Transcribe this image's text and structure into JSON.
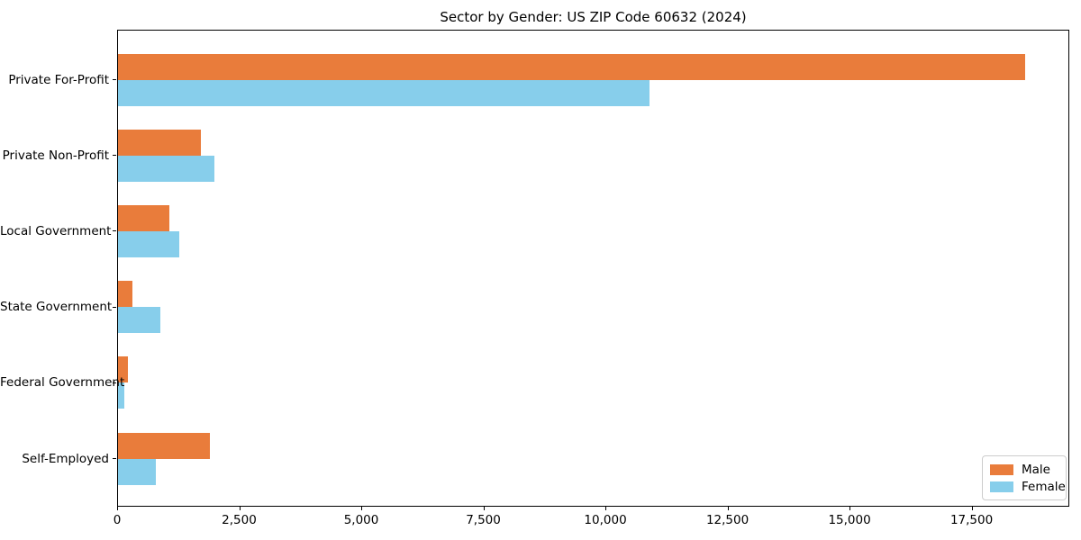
{
  "title": "Sector by Gender: US ZIP Code 60632 (2024)",
  "chart_data": {
    "type": "bar",
    "orientation": "horizontal",
    "title": "Sector by Gender: US ZIP Code 60632 (2024)",
    "categories": [
      "Private For-Profit",
      "Private Non-Profit",
      "Local Government",
      "State Government",
      "Federal Government",
      "Self-Employed"
    ],
    "series": [
      {
        "name": "Male",
        "color": "#e97c3b",
        "values": [
          18570,
          1700,
          1060,
          300,
          210,
          1890
        ]
      },
      {
        "name": "Female",
        "color": "#87ceeb",
        "values": [
          10880,
          1980,
          1260,
          860,
          120,
          780
        ]
      }
    ],
    "xlabel": "",
    "ylabel": "",
    "xlim": [
      0,
      19500
    ],
    "xticks": [
      0,
      2500,
      5000,
      7500,
      10000,
      12500,
      15000,
      17500
    ],
    "xtick_labels": [
      "0",
      "2,500",
      "5,000",
      "7,500",
      "10,000",
      "12,500",
      "15,000",
      "17,500"
    ],
    "grid": false,
    "legend_position": "lower right",
    "legend_border_color": "#cccccc",
    "text_color": "#000000",
    "spine_color": "#000000"
  }
}
